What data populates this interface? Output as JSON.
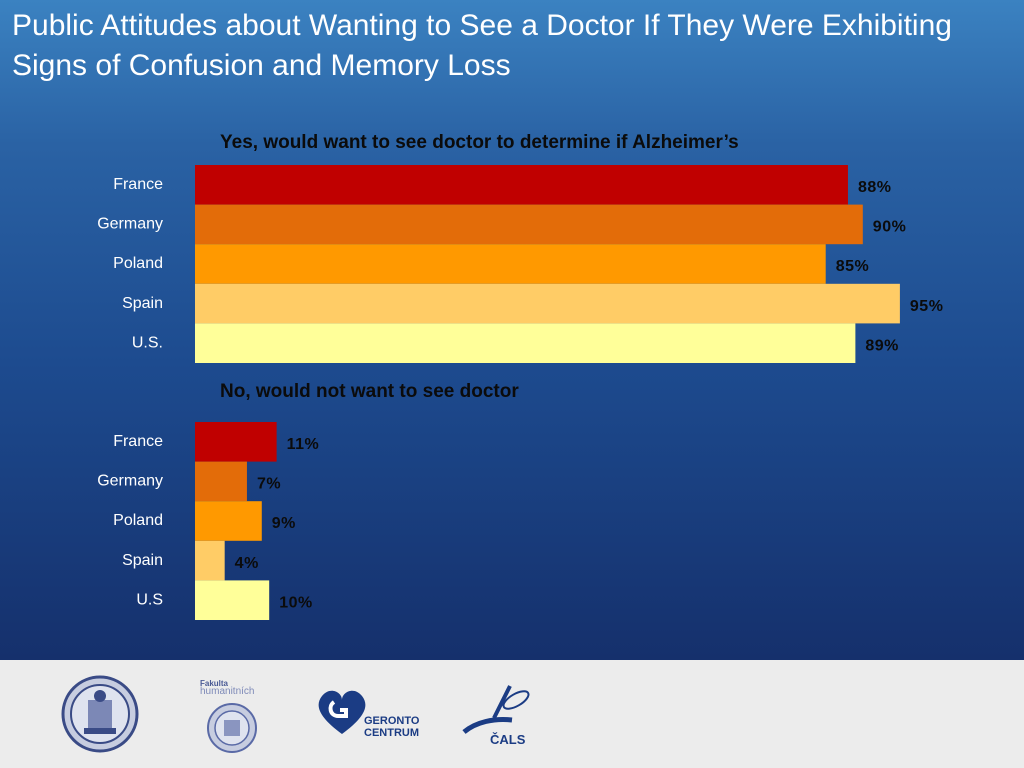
{
  "title": "Public Attitudes about Wanting to See a Doctor If They Were Exhibiting Signs of Confusion and Memory Loss",
  "chart_data": [
    {
      "type": "bar",
      "orientation": "horizontal",
      "title": "Yes, would want to see doctor to determine if Alzheimer’s",
      "categories": [
        "France",
        "Germany",
        "Poland",
        "Spain",
        "U.S."
      ],
      "values": [
        88,
        90,
        85,
        95,
        89
      ],
      "value_labels": [
        "88%",
        "90%",
        "85%",
        "95%",
        "89%"
      ],
      "unit": "%",
      "xlim": [
        0,
        100
      ],
      "colors": [
        "#c00000",
        "#e36c09",
        "#ff9900",
        "#ffcc66",
        "#ffff99"
      ],
      "grid": false,
      "legend": "none"
    },
    {
      "type": "bar",
      "orientation": "horizontal",
      "title": "No, would not want to see doctor",
      "categories": [
        "France",
        "Germany",
        "Poland",
        "Spain",
        "U.S"
      ],
      "values": [
        11,
        7,
        9,
        4,
        10
      ],
      "value_labels": [
        "11%",
        "7%",
        "9%",
        "4%",
        "10%"
      ],
      "unit": "%",
      "xlim": [
        0,
        100
      ],
      "colors": [
        "#c00000",
        "#e36c09",
        "#ff9900",
        "#ffcc66",
        "#ffff99"
      ],
      "grid": false,
      "legend": "none"
    }
  ],
  "footer": {
    "logos": [
      {
        "name": "charles-university-seal",
        "text": ""
      },
      {
        "name": "fakulta-humanitnich-studii-logo",
        "text": "Fakulta humanitních studií Univerzity Karlovy"
      },
      {
        "name": "gerontocentrum-logo",
        "text": "GERONTO CENTRUM"
      },
      {
        "name": "cals-logo",
        "text": "ČALS"
      }
    ]
  }
}
